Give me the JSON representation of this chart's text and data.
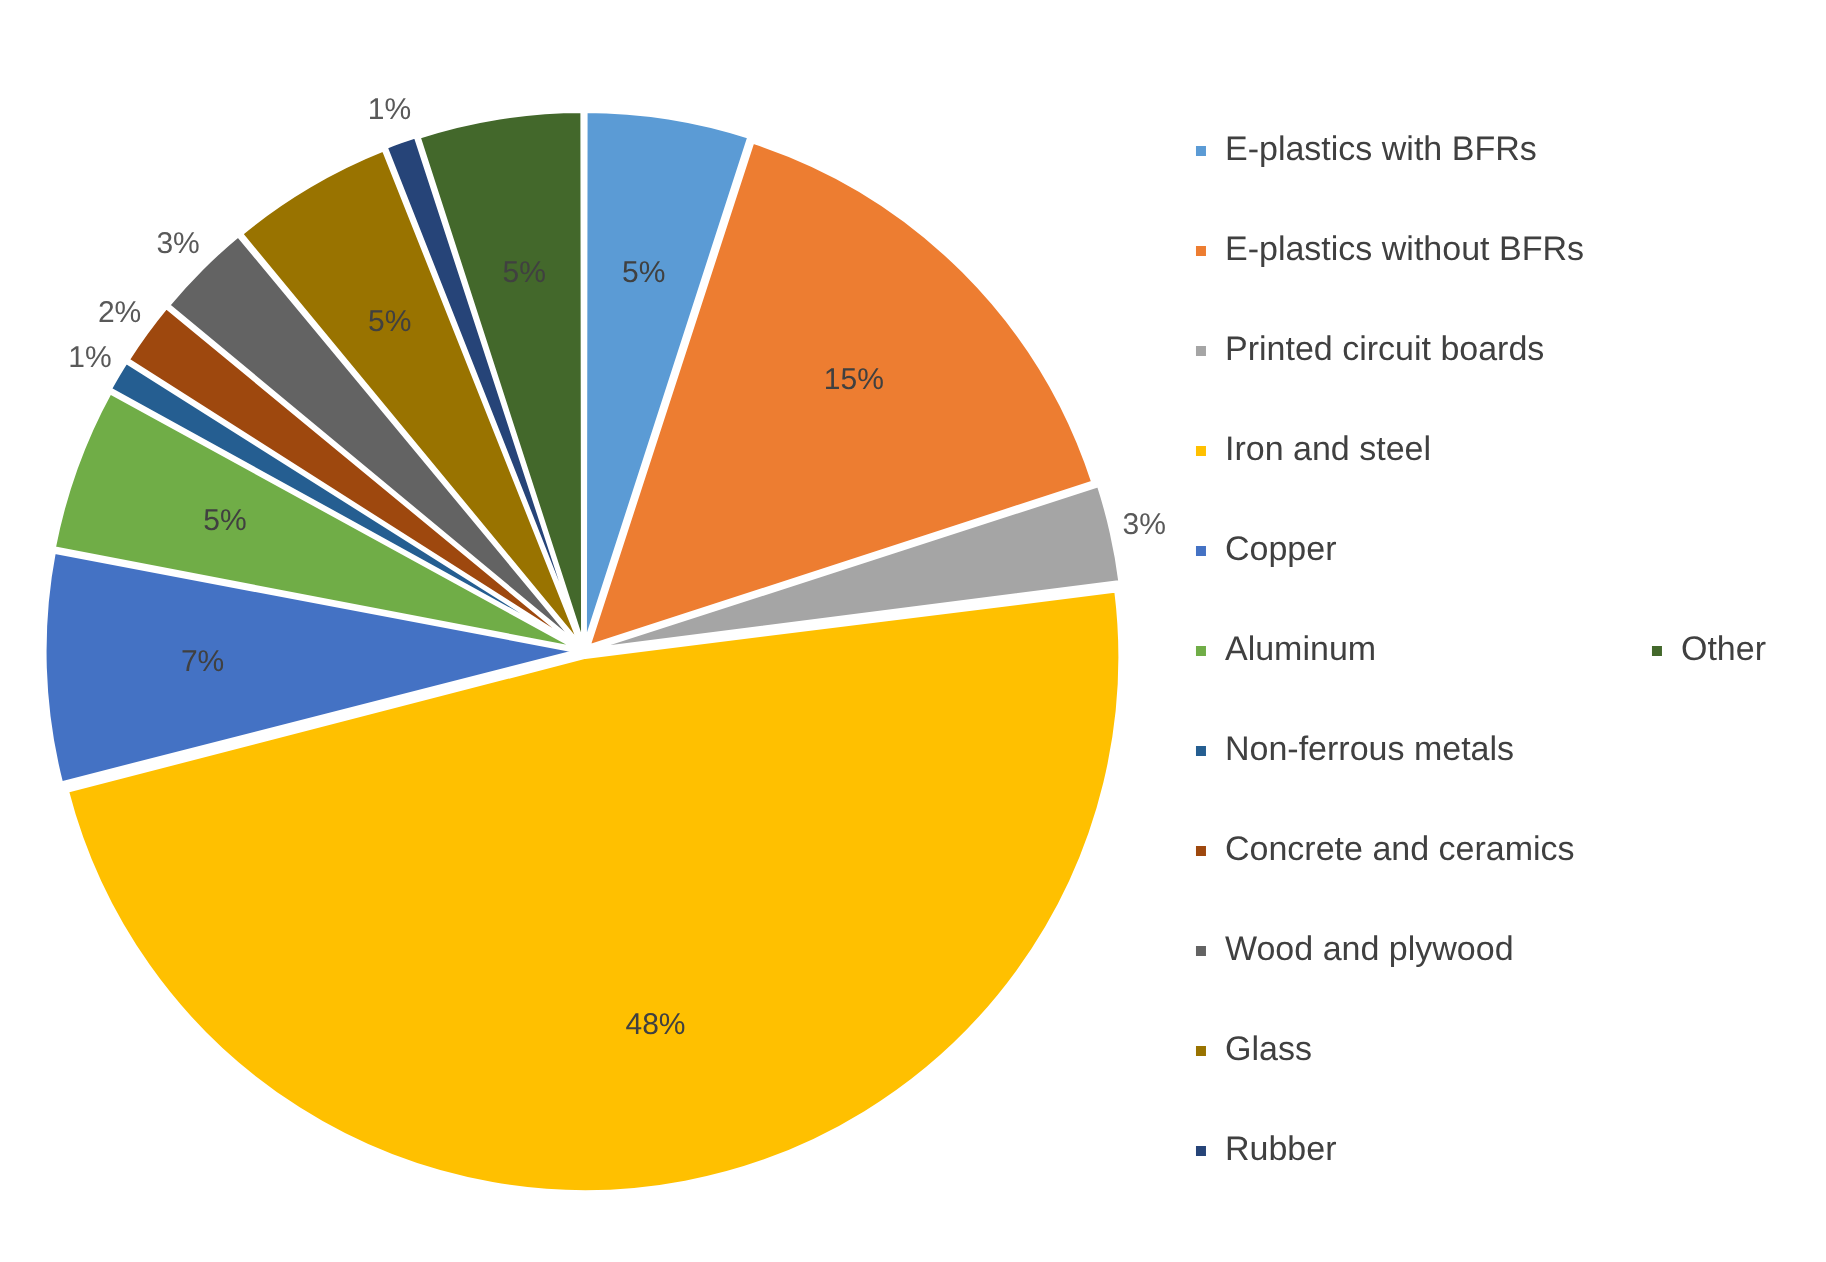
{
  "chart_data": {
    "type": "pie",
    "categories": [
      "E-plastics with BFRs",
      "E-plastics without BFRs",
      "Printed circuit boards",
      "Iron and steel",
      "Copper",
      "Aluminum",
      "Non-ferrous metals",
      "Concrete and ceramics",
      "Wood and plywood",
      "Glass",
      "Rubber",
      "Other"
    ],
    "values": [
      5,
      15,
      3,
      48,
      7,
      5,
      1,
      2,
      3,
      5,
      1,
      5
    ],
    "value_labels": [
      "5%",
      "15%",
      "3%",
      "48%",
      "7%",
      "5%",
      "1%",
      "2%",
      "3%",
      "5%",
      "1%",
      "5%"
    ],
    "colors": [
      "#5b9bd5",
      "#ed7d31",
      "#a5a5a5",
      "#ffc000",
      "#4472c4",
      "#70ad47",
      "#255e91",
      "#9e480e",
      "#636363",
      "#997300",
      "#264478",
      "#43682b"
    ],
    "legend": "right"
  }
}
